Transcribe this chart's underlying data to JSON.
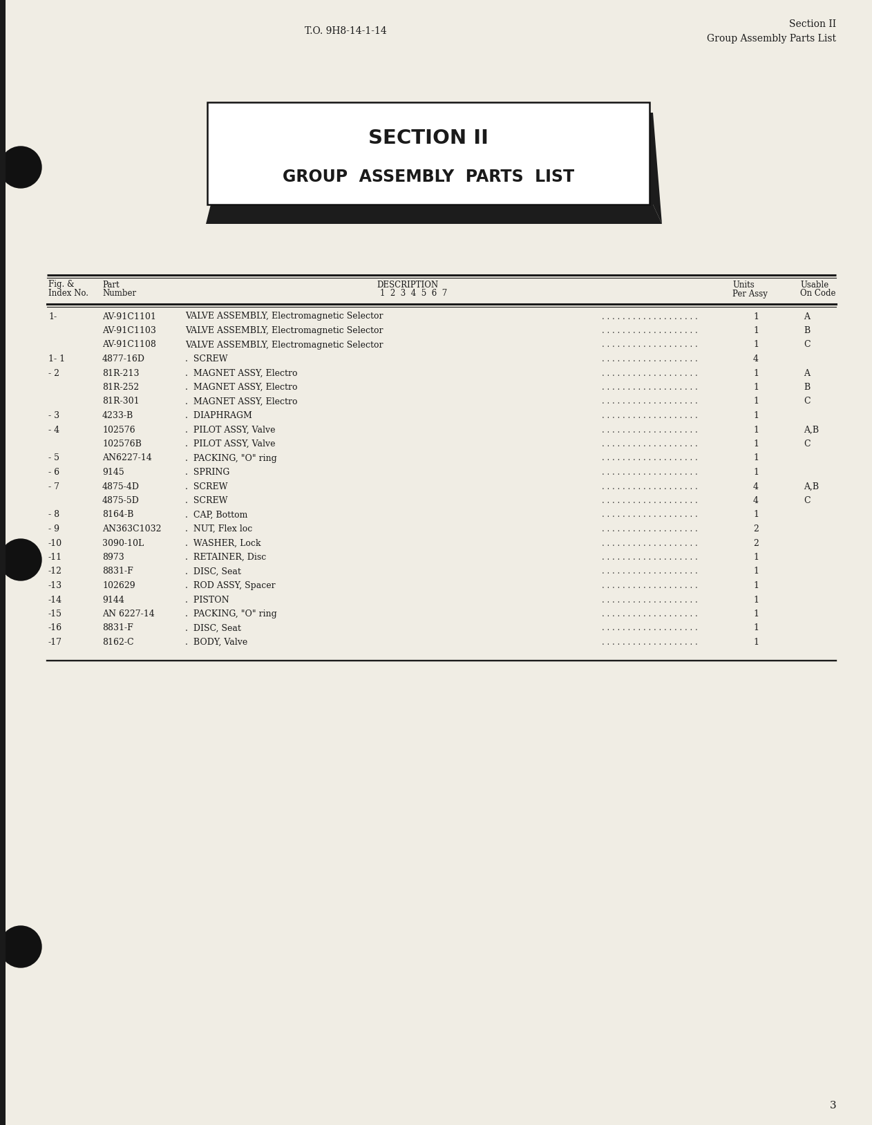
{
  "header_left": "T.O. 9H8-14-1-14",
  "header_right_line1": "Section II",
  "header_right_line2": "Group Assembly Parts List",
  "section_title_line1": "SECTION II",
  "section_title_line2": "GROUP  ASSEMBLY  PARTS  LIST",
  "table_rows": [
    [
      "1-",
      "AV-91C1101",
      "VALVE ASSEMBLY, Electromagnetic Selector",
      "1",
      "A"
    ],
    [
      "",
      "AV-91C1103",
      "VALVE ASSEMBLY, Electromagnetic Selector",
      "1",
      "B"
    ],
    [
      "",
      "AV-91C1108",
      "VALVE ASSEMBLY, Electromagnetic Selector",
      "1",
      "C"
    ],
    [
      "1- 1",
      "4877-16D",
      ".  SCREW",
      "4",
      ""
    ],
    [
      "- 2",
      "81R-213",
      ".  MAGNET ASSY, Electro",
      "1",
      "A"
    ],
    [
      "",
      "81R-252",
      ".  MAGNET ASSY, Electro",
      "1",
      "B"
    ],
    [
      "",
      "81R-301",
      ".  MAGNET ASSY, Electro",
      "1",
      "C"
    ],
    [
      "- 3",
      "4233-B",
      ".  DIAPHRAGM",
      "1",
      ""
    ],
    [
      "- 4",
      "102576",
      ".  PILOT ASSY, Valve",
      "1",
      "A,B"
    ],
    [
      "",
      "102576B",
      ".  PILOT ASSY, Valve",
      "1",
      "C"
    ],
    [
      "- 5",
      "AN6227-14",
      ".  PACKING, \"O\" ring",
      "1",
      ""
    ],
    [
      "- 6",
      "9145",
      ".  SPRING",
      "1",
      ""
    ],
    [
      "- 7",
      "4875-4D",
      ".  SCREW",
      "4",
      "A,B"
    ],
    [
      "",
      "4875-5D",
      ".  SCREW",
      "4",
      "C"
    ],
    [
      "- 8",
      "8164-B",
      ".  CAP, Bottom",
      "1",
      ""
    ],
    [
      "- 9",
      "AN363C1032",
      ".  NUT, Flex loc",
      "2",
      ""
    ],
    [
      "-10",
      "3090-10L",
      ".  WASHER, Lock",
      "2",
      ""
    ],
    [
      "-11",
      "8973",
      ".  RETAINER, Disc",
      "1",
      ""
    ],
    [
      "-12",
      "8831-F",
      ".  DISC, Seat",
      "1",
      ""
    ],
    [
      "-13",
      "102629",
      ".  ROD ASSY, Spacer",
      "1",
      ""
    ],
    [
      "-14",
      "9144",
      ".  PISTON",
      "1",
      ""
    ],
    [
      "-15",
      "AN 6227-14",
      ".  PACKING, \"O\" ring",
      "1",
      ""
    ],
    [
      "-16",
      "8831-F",
      ".  DISC, Seat",
      "1",
      ""
    ],
    [
      "-17",
      "8162-C",
      ".  BODY, Valve",
      "1",
      ""
    ]
  ],
  "page_number": "3",
  "bg_color": "#f0ede4",
  "text_color": "#1a1a1a"
}
